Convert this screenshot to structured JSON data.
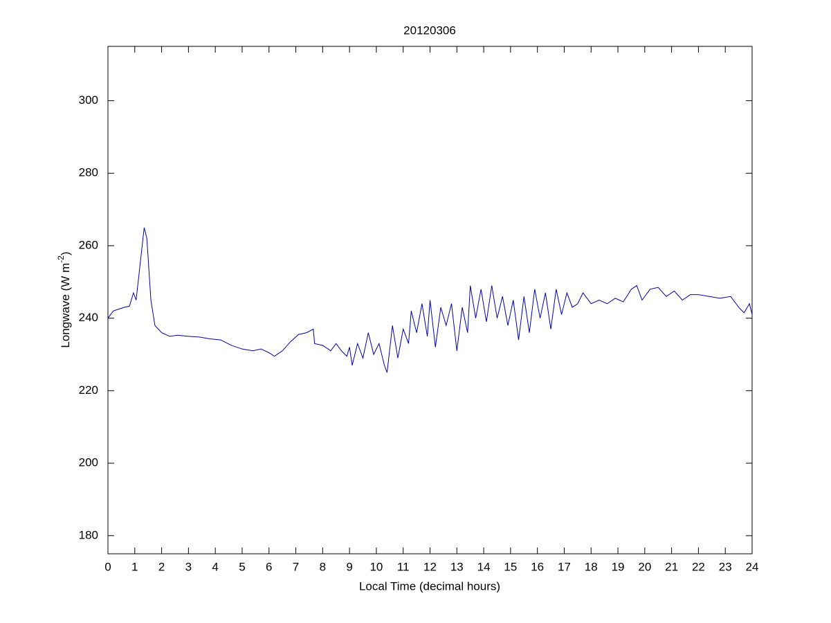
{
  "chart_data": {
    "type": "line",
    "title": "20120306",
    "xlabel": "Local Time (decimal hours)",
    "ylabel": [
      "Longwave (W m",
      "-2",
      ")"
    ],
    "xlim": [
      0,
      24
    ],
    "ylim": [
      175,
      315
    ],
    "xticks": [
      0,
      1,
      2,
      3,
      4,
      5,
      6,
      7,
      8,
      9,
      10,
      11,
      12,
      13,
      14,
      15,
      16,
      17,
      18,
      19,
      20,
      21,
      22,
      23,
      24
    ],
    "yticks": [
      180,
      200,
      220,
      240,
      260,
      280,
      300
    ],
    "grid": false,
    "x": [
      0,
      0.2,
      0.4,
      0.6,
      0.8,
      0.95,
      1.05,
      1.2,
      1.35,
      1.45,
      1.6,
      1.75,
      2.0,
      2.3,
      2.6,
      3.0,
      3.4,
      3.8,
      4.2,
      4.6,
      5.0,
      5.4,
      5.7,
      6.0,
      6.2,
      6.5,
      6.8,
      7.1,
      7.4,
      7.65,
      7.7,
      8.0,
      8.3,
      8.5,
      8.7,
      8.9,
      9.0,
      9.1,
      9.3,
      9.5,
      9.7,
      9.9,
      10.1,
      10.3,
      10.4,
      10.6,
      10.8,
      11.0,
      11.2,
      11.3,
      11.5,
      11.7,
      11.9,
      12.0,
      12.2,
      12.4,
      12.6,
      12.8,
      13.0,
      13.2,
      13.4,
      13.5,
      13.7,
      13.9,
      14.1,
      14.3,
      14.5,
      14.7,
      14.9,
      15.1,
      15.3,
      15.5,
      15.7,
      15.9,
      16.1,
      16.3,
      16.5,
      16.7,
      16.9,
      17.1,
      17.3,
      17.5,
      17.7,
      18.0,
      18.3,
      18.6,
      18.9,
      19.2,
      19.5,
      19.7,
      19.9,
      20.2,
      20.5,
      20.8,
      21.1,
      21.4,
      21.7,
      22.0,
      22.4,
      22.8,
      23.2,
      23.5,
      23.7,
      23.9,
      24.0
    ],
    "series": [
      {
        "name": "Longwave",
        "color": "#0000a0",
        "values": [
          240,
          242,
          242.5,
          243,
          243.3,
          247,
          245,
          255,
          265,
          262,
          245,
          238,
          236,
          235,
          235.3,
          235,
          234.8,
          234.3,
          234,
          232.5,
          231.5,
          231,
          231.5,
          230.5,
          229.5,
          231,
          233.5,
          235.5,
          236,
          237,
          233,
          232.5,
          231,
          233,
          231,
          229.5,
          232,
          227,
          233,
          229,
          236,
          230,
          233,
          227,
          225,
          238,
          229,
          237,
          233,
          242,
          236,
          244,
          235,
          245,
          232,
          243,
          238,
          244,
          231,
          243,
          236,
          249,
          240,
          248,
          239,
          249,
          240,
          246,
          238,
          245,
          234,
          246,
          236,
          248,
          240,
          247,
          237,
          248,
          241,
          247,
          243,
          244,
          247,
          244,
          245,
          244,
          245.5,
          244.5,
          248,
          249,
          245,
          248,
          248.5,
          246,
          247.5,
          245,
          246.5,
          246.5,
          246,
          245.5,
          246,
          243,
          241.5,
          244,
          241
        ]
      }
    ]
  }
}
